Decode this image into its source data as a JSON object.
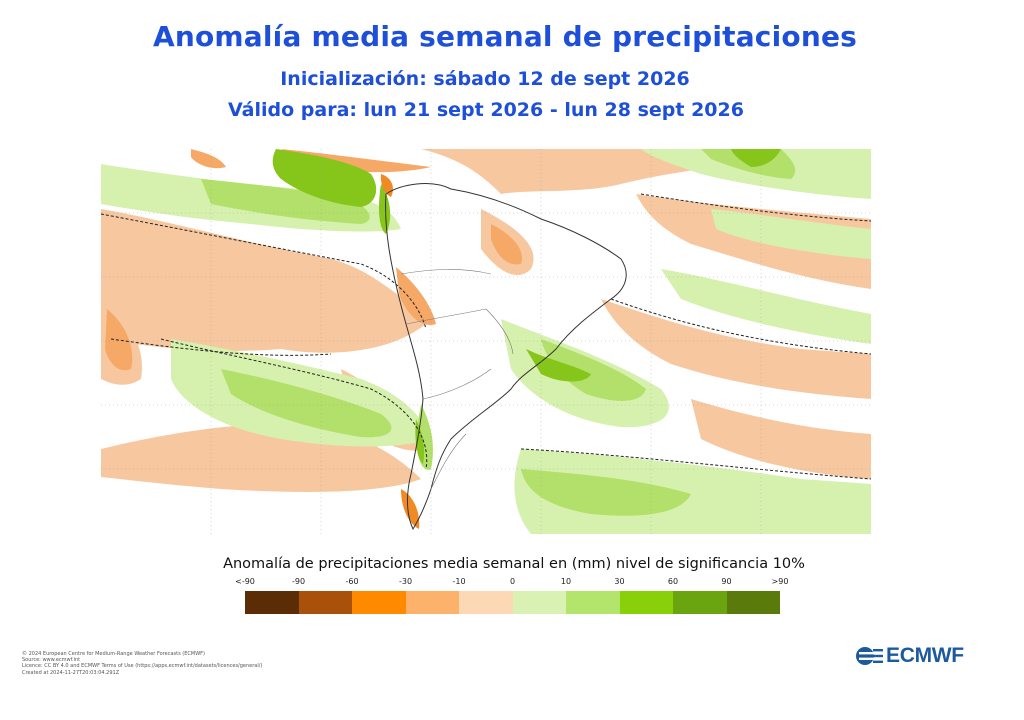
{
  "header": {
    "title": "Anomalía media semanal de precipitaciones",
    "initialization": "Inicialización: sábado 12 de sept 2026",
    "valid_for": "Válido para: lun 21 sept 2026 - lun 28 sept 2026"
  },
  "map": {
    "region": "South America and surrounding oceans",
    "palette": {
      "land_border": "#555555",
      "ocean": "#ffffff",
      "very_dry": "#5a2d07",
      "dry": "#f6c7a1",
      "wet": "#d2f0a7",
      "wetter": "#a7dd62",
      "very_wet": "#6bbc16"
    }
  },
  "legend": {
    "title": "Anomalía de precipitaciones media semanal en (mm) nivel de significancia 10%",
    "tick_labels": [
      "<-90",
      "-90",
      "-60",
      "-30",
      "-10",
      "0",
      "10",
      "30",
      "60",
      "90",
      ">90"
    ],
    "colors": [
      "#5a2d07",
      "#a9510a",
      "#ff8a00",
      "#fdb26b",
      "#fdd8b5",
      "#d9f2b4",
      "#b3e46c",
      "#89cf0a",
      "#6aa510",
      "#5a7b0c"
    ]
  },
  "footer": {
    "credits": [
      "© 2024 European Centre for Medium-Range Weather Forecasts (ECMWF)",
      "Source: www.ecmwf.int",
      "Licence: CC BY 4.0 and ECMWF Terms of Use (https://apps.ecmwf.int/datasets/licences/general/)",
      "Created at 2024-11-27T20:03:04.291Z"
    ],
    "logo_text": "ECMWF"
  }
}
